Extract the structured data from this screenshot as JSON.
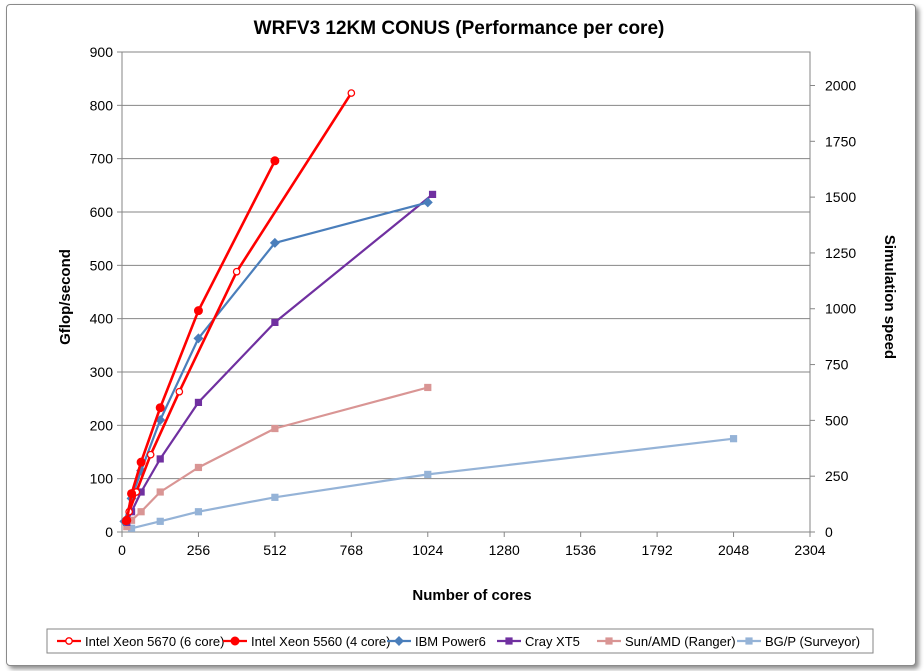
{
  "chart_data": {
    "type": "line",
    "title": "WRFV3 12KM CONUS (Performance per core)",
    "xlabel": "Number of cores",
    "ylabel": "Gflop/second",
    "y2label": "Simulation speed",
    "xlim": [
      0,
      2304
    ],
    "ylim": [
      0,
      900
    ],
    "y2lim": [
      0,
      2150
    ],
    "xticks": [
      0,
      256,
      512,
      768,
      1024,
      1280,
      1536,
      1792,
      2048,
      2304
    ],
    "yticks": [
      0,
      100,
      200,
      300,
      400,
      500,
      600,
      700,
      800,
      900
    ],
    "y2ticks": [
      0,
      250,
      500,
      750,
      1000,
      1250,
      1500,
      1750,
      2000
    ],
    "grid": "horizontal",
    "legend_position": "bottom",
    "series": [
      {
        "name": "Intel Xeon 5670 (6 core)",
        "color": "#ff0000",
        "marker": "open-circle",
        "x": [
          12,
          24,
          48,
          96,
          192,
          384,
          768
        ],
        "y": [
          20,
          38,
          75,
          145,
          263,
          488,
          823
        ]
      },
      {
        "name": "Intel Xeon 5560 (4 core)",
        "color": "#ff0000",
        "marker": "filled-circle",
        "x": [
          16,
          32,
          64,
          128,
          256,
          512
        ],
        "y": [
          22,
          72,
          131,
          233,
          415,
          696
        ]
      },
      {
        "name": "IBM Power6",
        "color": "#4a7ebb",
        "marker": "diamond",
        "x": [
          8,
          32,
          64,
          128,
          256,
          512,
          1024
        ],
        "y": [
          20,
          63,
          115,
          210,
          363,
          542,
          618
        ]
      },
      {
        "name": "Cray XT5",
        "color": "#7030a0",
        "marker": "square",
        "x": [
          16,
          32,
          64,
          128,
          256,
          512,
          1040
        ],
        "y": [
          18,
          38,
          75,
          137,
          243,
          393,
          633
        ]
      },
      {
        "name": "Sun/AMD (Ranger)",
        "color": "#d99594",
        "marker": "square",
        "x": [
          16,
          32,
          64,
          128,
          256,
          512,
          1024
        ],
        "y": [
          10,
          22,
          38,
          75,
          121,
          194,
          271
        ]
      },
      {
        "name": "BG/P (Surveyor)",
        "color": "#95b3d7",
        "marker": "square",
        "x": [
          32,
          128,
          256,
          512,
          1024,
          2048
        ],
        "y": [
          7,
          20,
          38,
          65,
          108,
          175
        ]
      }
    ]
  }
}
